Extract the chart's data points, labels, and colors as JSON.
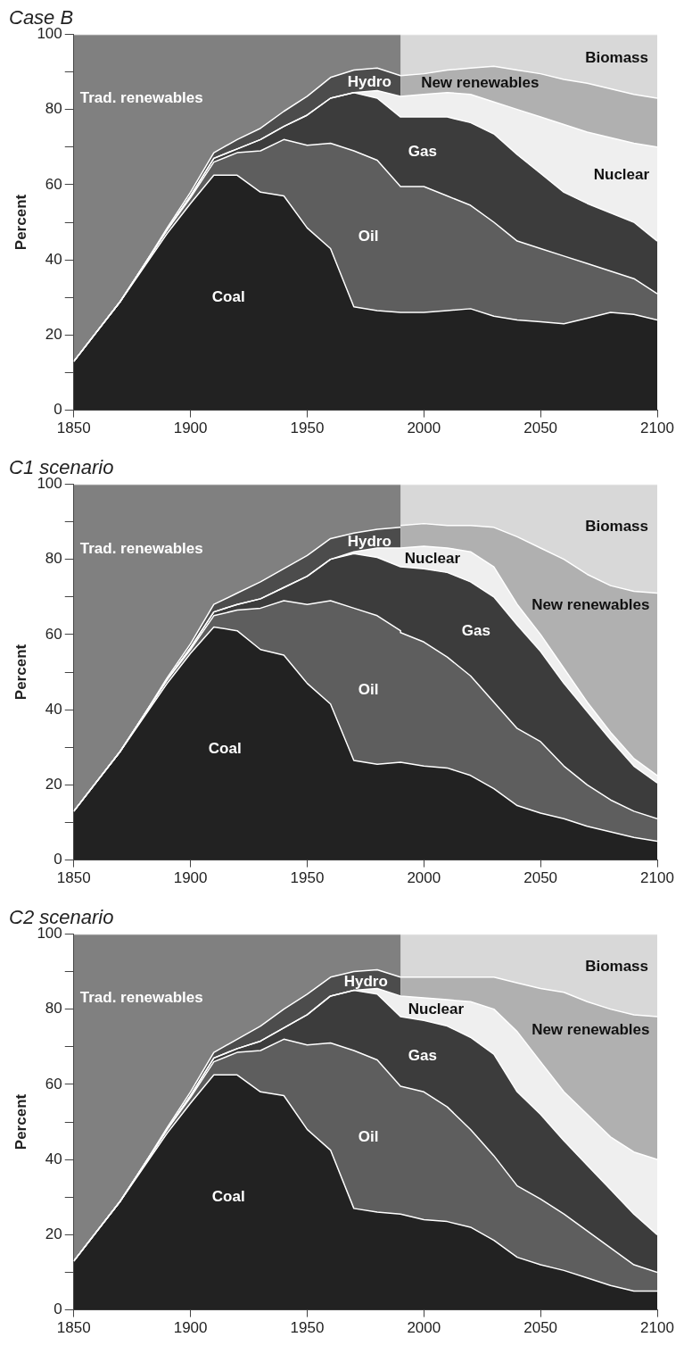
{
  "chart_data": [
    {
      "type": "area",
      "title": "Case B",
      "ylabel": "Percent",
      "stacked": true,
      "grid": false,
      "legend": false,
      "marker": "none",
      "x": [
        1850,
        1860,
        1870,
        1880,
        1890,
        1900,
        1910,
        1920,
        1930,
        1940,
        1950,
        1960,
        1970,
        1980,
        1990,
        1990,
        2000,
        2010,
        2020,
        2030,
        2040,
        2050,
        2060,
        2070,
        2080,
        2090,
        2100
      ],
      "xlim": [
        1850,
        2100
      ],
      "xticks": [
        1850,
        1900,
        1950,
        2000,
        2050,
        2100
      ],
      "ylim": [
        0,
        100
      ],
      "yticks": [
        0,
        {
          "value": 10,
          "label": null
        },
        20,
        {
          "value": 30,
          "label": null
        },
        40,
        {
          "value": 50,
          "label": null
        },
        60,
        {
          "value": 70,
          "label": null
        },
        80,
        {
          "value": 90,
          "label": null
        },
        100
      ],
      "series": [
        {
          "name": "Coal",
          "color": "#222222",
          "values": [
            13,
            21,
            29,
            38,
            47,
            55,
            62.5,
            62.5,
            58,
            57,
            48.5,
            43,
            27.5,
            26.5,
            26,
            26,
            26,
            26.5,
            27,
            25,
            24,
            23.5,
            23,
            24.5,
            26,
            25.5,
            24
          ]
        },
        {
          "name": "Oil",
          "color": "#5e5e5e",
          "values": [
            0,
            0,
            0,
            0.5,
            1,
            1.5,
            3.5,
            6,
            11,
            15,
            22,
            28,
            41.5,
            40,
            33.5,
            33.5,
            33.5,
            30.5,
            27.5,
            25,
            21,
            19.5,
            18,
            14.5,
            11,
            9.5,
            7
          ]
        },
        {
          "name": "Gas",
          "color": "#3c3c3c",
          "values": [
            0,
            0,
            0,
            0,
            0,
            0.5,
            1,
            1,
            3,
            3.5,
            8,
            12,
            15.5,
            16.5,
            18.5,
            18.5,
            18.5,
            21,
            22,
            23.5,
            23,
            20,
            17,
            16,
            15.5,
            15,
            14
          ]
        },
        {
          "name": "Nuclear",
          "color": "#efefef",
          "values": [
            0,
            0,
            0,
            0,
            0,
            0,
            0,
            0,
            0,
            0,
            0,
            0,
            0,
            2,
            5.5,
            5.5,
            6,
            6.5,
            7.5,
            8.5,
            12,
            15,
            18,
            19,
            20,
            21,
            25
          ]
        },
        {
          "name": "Hydro",
          "color": "#4c4c4c",
          "values": [
            0,
            0,
            0,
            0,
            0.5,
            1,
            1.5,
            2.5,
            3,
            4,
            5,
            5.5,
            6,
            6,
            5.5,
            null,
            null,
            null,
            null,
            null,
            null,
            null,
            null,
            null,
            null,
            null,
            null
          ]
        },
        {
          "name": "New renewables",
          "color": "#b0b0b0",
          "values": [
            null,
            null,
            null,
            null,
            null,
            null,
            null,
            null,
            null,
            null,
            null,
            null,
            null,
            null,
            null,
            5.5,
            5.5,
            6,
            7,
            9.5,
            10.5,
            11.5,
            12,
            13,
            13,
            13,
            13
          ]
        },
        {
          "name": "Biomass",
          "color": "#d8d8d8",
          "values": [
            null,
            null,
            null,
            null,
            null,
            null,
            null,
            null,
            null,
            null,
            null,
            null,
            null,
            null,
            null,
            11,
            10.5,
            9.5,
            9,
            8.5,
            9.5,
            10.5,
            12,
            13,
            14.5,
            16,
            17
          ]
        },
        {
          "name": "Trad. renewables",
          "color": "#808080",
          "values": [
            87,
            79,
            71,
            61.5,
            51.5,
            42,
            31.5,
            28,
            25,
            20.5,
            16.5,
            11.5,
            9.5,
            9,
            11,
            null,
            null,
            null,
            null,
            null,
            null,
            null,
            null,
            null,
            null,
            null,
            null
          ]
        }
      ]
    },
    {
      "type": "area",
      "title": "C1 scenario",
      "ylabel": "Percent",
      "stacked": true,
      "grid": false,
      "legend": false,
      "marker": "none",
      "x": [
        1850,
        1860,
        1870,
        1880,
        1890,
        1900,
        1910,
        1920,
        1930,
        1940,
        1950,
        1960,
        1970,
        1980,
        1990,
        1990,
        2000,
        2010,
        2020,
        2030,
        2040,
        2050,
        2060,
        2070,
        2080,
        2090,
        2100
      ],
      "xlim": [
        1850,
        2100
      ],
      "xticks": [
        1850,
        1900,
        1950,
        2000,
        2050,
        2100
      ],
      "ylim": [
        0,
        100
      ],
      "yticks": [
        0,
        {
          "value": 10,
          "label": null
        },
        20,
        {
          "value": 30,
          "label": null
        },
        40,
        {
          "value": 50,
          "label": null
        },
        60,
        {
          "value": 70,
          "label": null
        },
        80,
        {
          "value": 90,
          "label": null
        },
        100
      ],
      "series": [
        {
          "name": "Coal",
          "color": "#222222",
          "values": [
            13,
            21,
            29,
            38,
            47,
            55,
            62,
            61,
            56,
            54.5,
            47,
            41.5,
            26.5,
            25.5,
            26,
            26,
            25,
            24.5,
            22.5,
            19,
            14.5,
            12.5,
            11,
            9,
            7.5,
            6,
            5
          ]
        },
        {
          "name": "Oil",
          "color": "#5e5e5e",
          "values": [
            0,
            0,
            0,
            0.5,
            1,
            1,
            3,
            5.5,
            11,
            14.5,
            21,
            27.5,
            40.5,
            39.5,
            35,
            34.5,
            33,
            29.5,
            26.5,
            23,
            20.5,
            19,
            14,
            11,
            8.5,
            7,
            6
          ]
        },
        {
          "name": "Gas",
          "color": "#3c3c3c",
          "values": [
            0,
            0,
            0,
            0,
            0,
            0.5,
            1,
            1.5,
            2.5,
            3.5,
            7.5,
            11,
            14.5,
            15.5,
            17,
            17.5,
            19.5,
            22.5,
            25,
            28,
            27.5,
            24,
            22,
            19.5,
            16,
            12,
            9.5
          ]
        },
        {
          "name": "Nuclear",
          "color": "#efefef",
          "values": [
            0,
            0,
            0,
            0,
            0,
            0,
            0,
            0,
            0,
            0,
            0,
            0,
            0.5,
            2.5,
            5,
            5,
            6,
            6.5,
            8,
            8,
            5.5,
            4.5,
            4,
            2.5,
            2,
            2,
            2
          ]
        },
        {
          "name": "Hydro",
          "color": "#4c4c4c",
          "values": [
            0,
            0,
            0,
            0,
            0.5,
            1,
            2,
            3,
            4.5,
            5,
            5.5,
            5.5,
            5,
            5,
            5.5,
            null,
            null,
            null,
            null,
            null,
            null,
            null,
            null,
            null,
            null,
            null,
            null
          ]
        },
        {
          "name": "New renewables",
          "color": "#b0b0b0",
          "values": [
            null,
            null,
            null,
            null,
            null,
            null,
            null,
            null,
            null,
            null,
            null,
            null,
            null,
            null,
            null,
            6,
            6,
            6,
            7,
            10.5,
            18,
            23,
            29,
            34,
            39,
            44.5,
            48.5
          ]
        },
        {
          "name": "Biomass",
          "color": "#d8d8d8",
          "values": [
            null,
            null,
            null,
            null,
            null,
            null,
            null,
            null,
            null,
            null,
            null,
            null,
            null,
            null,
            null,
            11,
            10.5,
            11,
            11,
            11.5,
            14,
            17,
            20,
            24,
            27,
            28.5,
            29
          ]
        },
        {
          "name": "Trad. renewables",
          "color": "#808080",
          "values": [
            87,
            79,
            71,
            61.5,
            51.5,
            42.5,
            32,
            29,
            26,
            22.5,
            19,
            14.5,
            13,
            12,
            11.5,
            null,
            null,
            null,
            null,
            null,
            null,
            null,
            null,
            null,
            null,
            null,
            null
          ]
        }
      ]
    },
    {
      "type": "area",
      "title": "C2 scenario",
      "ylabel": "Percent",
      "stacked": true,
      "grid": false,
      "legend": false,
      "marker": "none",
      "x": [
        1850,
        1860,
        1870,
        1880,
        1890,
        1900,
        1910,
        1920,
        1930,
        1940,
        1950,
        1960,
        1970,
        1980,
        1990,
        1990,
        2000,
        2010,
        2020,
        2030,
        2040,
        2050,
        2060,
        2070,
        2080,
        2090,
        2100
      ],
      "xlim": [
        1850,
        2100
      ],
      "xticks": [
        1850,
        1900,
        1950,
        2000,
        2050,
        2100
      ],
      "ylim": [
        0,
        100
      ],
      "yticks": [
        0,
        {
          "value": 10,
          "label": null
        },
        20,
        {
          "value": 30,
          "label": null
        },
        40,
        {
          "value": 50,
          "label": null
        },
        60,
        {
          "value": 70,
          "label": null
        },
        80,
        {
          "value": 90,
          "label": null
        },
        100
      ],
      "series": [
        {
          "name": "Coal",
          "color": "#222222",
          "values": [
            13,
            21,
            29,
            38,
            47,
            55,
            62.5,
            62.5,
            58,
            57,
            48,
            42.5,
            27,
            26,
            25.5,
            25.5,
            24,
            23.5,
            22,
            18.5,
            14,
            12,
            10.5,
            8.5,
            6.5,
            5,
            5
          ]
        },
        {
          "name": "Oil",
          "color": "#5e5e5e",
          "values": [
            0,
            0,
            0,
            0.5,
            1,
            1.5,
            3.5,
            6,
            11,
            15,
            22.5,
            28.5,
            42,
            40.5,
            34,
            34,
            34,
            30.5,
            26,
            22.5,
            19,
            17.5,
            15,
            12.5,
            10,
            7,
            5
          ]
        },
        {
          "name": "Gas",
          "color": "#3c3c3c",
          "values": [
            0,
            0,
            0,
            0,
            0,
            0.5,
            1,
            1,
            2.5,
            3,
            8,
            12.5,
            16,
            17.5,
            18.5,
            18.5,
            19,
            21.5,
            24.5,
            27,
            25,
            22.5,
            19.5,
            17.5,
            15.5,
            13.5,
            10
          ]
        },
        {
          "name": "Nuclear",
          "color": "#efefef",
          "values": [
            0,
            0,
            0,
            0,
            0,
            0,
            0,
            0,
            0,
            0,
            0,
            0,
            0,
            1.5,
            5.5,
            5.5,
            6,
            7,
            9.5,
            12,
            16,
            14,
            13,
            13.5,
            14,
            16.5,
            20
          ]
        },
        {
          "name": "Hydro",
          "color": "#4c4c4c",
          "values": [
            0,
            0,
            0,
            0,
            0.5,
            1,
            1.5,
            2.5,
            4,
            5,
            5.5,
            5,
            5,
            5,
            5,
            null,
            null,
            null,
            null,
            null,
            null,
            null,
            null,
            null,
            null,
            null,
            null
          ]
        },
        {
          "name": "New renewables",
          "color": "#b0b0b0",
          "values": [
            null,
            null,
            null,
            null,
            null,
            null,
            null,
            null,
            null,
            null,
            null,
            null,
            null,
            null,
            null,
            5,
            5.5,
            6,
            6.5,
            8.5,
            13,
            19.5,
            26.5,
            30,
            34,
            36.5,
            38
          ]
        },
        {
          "name": "Biomass",
          "color": "#d8d8d8",
          "values": [
            null,
            null,
            null,
            null,
            null,
            null,
            null,
            null,
            null,
            null,
            null,
            null,
            null,
            null,
            null,
            11.5,
            11.5,
            11.5,
            11.5,
            11.5,
            13,
            14.5,
            15.5,
            18,
            20,
            21.5,
            22
          ]
        },
        {
          "name": "Trad. renewables",
          "color": "#808080",
          "values": [
            87,
            79,
            71,
            61.5,
            51.5,
            42,
            31.5,
            28,
            24.5,
            20,
            16,
            11.5,
            10,
            9.5,
            11.5,
            null,
            null,
            null,
            null,
            null,
            null,
            null,
            null,
            null,
            null,
            null,
            null
          ]
        }
      ]
    }
  ]
}
